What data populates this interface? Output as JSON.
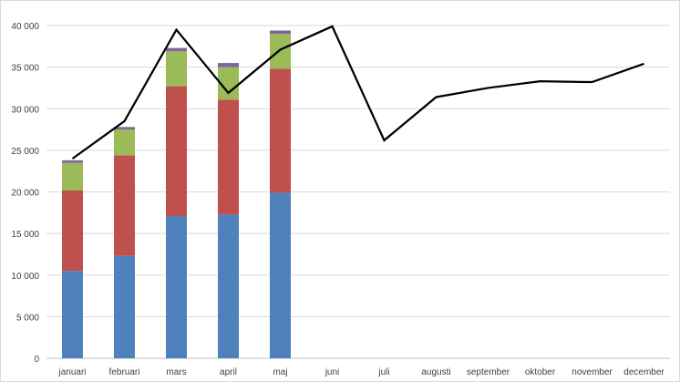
{
  "chart_data": {
    "type": "bar",
    "subtype": "stacked bar with line overlay",
    "title": "",
    "xlabel": "",
    "ylabel": "",
    "ylim": [
      0,
      40000
    ],
    "yticks": [
      0,
      5000,
      10000,
      15000,
      20000,
      25000,
      30000,
      35000,
      40000
    ],
    "ytick_labels": [
      "0",
      "5 000",
      "10 000",
      "15 000",
      "20 000",
      "25 000",
      "30 000",
      "35 000",
      "40 000"
    ],
    "grid": true,
    "legend": "none",
    "categories": [
      "januari",
      "februari",
      "mars",
      "april",
      "maj",
      "juni",
      "juli",
      "augusti",
      "september",
      "oktober",
      "november",
      "december"
    ],
    "series": [
      {
        "kind": "bar",
        "color": "#4f81bd",
        "values": [
          10500,
          12300,
          17100,
          17300,
          19900,
          null,
          null,
          null,
          null,
          null,
          null,
          null
        ]
      },
      {
        "kind": "bar",
        "color": "#c0504d",
        "values": [
          9700,
          12100,
          15600,
          13800,
          14900,
          null,
          null,
          null,
          null,
          null,
          null,
          null
        ]
      },
      {
        "kind": "bar",
        "color": "#9bbb59",
        "values": [
          3300,
          3100,
          4200,
          3900,
          4200,
          null,
          null,
          null,
          null,
          null,
          null,
          null
        ]
      },
      {
        "kind": "bar",
        "color": "#8064a2",
        "values": [
          300,
          300,
          400,
          500,
          400,
          null,
          null,
          null,
          null,
          null,
          null,
          null
        ]
      },
      {
        "kind": "line",
        "color": "#000000",
        "values": [
          24000,
          28500,
          39500,
          31900,
          37100,
          39900,
          26200,
          31400,
          32500,
          33300,
          33200,
          35400
        ]
      }
    ]
  }
}
